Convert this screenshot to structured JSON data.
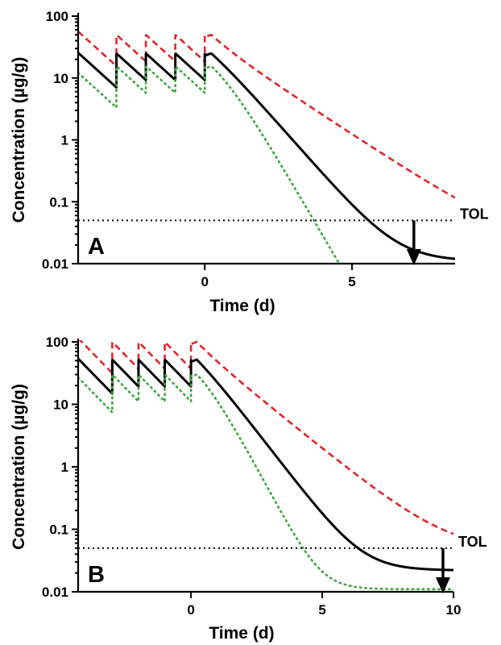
{
  "chart_data": [
    {
      "type": "line",
      "panel_label": "A",
      "xlabel": "Time (d)",
      "ylabel": "Concentration (µg/g)",
      "y_scale": "log",
      "xlim": [
        -4.3,
        8.5
      ],
      "ylim": [
        0.01,
        100
      ],
      "x_ticks": [
        0,
        5
      ],
      "y_ticks": [
        0.01,
        0.1,
        1,
        10,
        100
      ],
      "y_tick_labels": [
        "0.01",
        "0.1",
        "1",
        "10",
        "100"
      ],
      "threshold": {
        "label": "TOL",
        "value": 0.05
      },
      "arrow_at_x": 7.1,
      "dosing": {
        "times": [
          -4,
          -3,
          -2,
          -1,
          0
        ],
        "half_life_d": 0.7
      },
      "series": [
        {
          "style": "dashed",
          "color": "#e0262b",
          "C0": 42,
          "Cpost": 50,
          "decay_tail_k": 0.72,
          "plateau": 0.018
        },
        {
          "style": "solid",
          "color": "#000000",
          "C0": 19,
          "Cpost": 25,
          "decay_tail_k": 1.26,
          "plateau": 0.011
        },
        {
          "style": "dotted",
          "color": "#3aa83a",
          "C0": 9,
          "Cpost": 15.5,
          "decay_tail_k": 1.9,
          "plateau": 0.0001
        }
      ]
    },
    {
      "type": "line",
      "panel_label": "B",
      "xlabel": "Time (d)",
      "ylabel": "Concentration (µg/g)",
      "y_scale": "log",
      "xlim": [
        -4.3,
        10
      ],
      "ylim": [
        0.01,
        100
      ],
      "x_ticks": [
        0,
        5,
        10
      ],
      "y_ticks": [
        0.01,
        0.1,
        1,
        10,
        100
      ],
      "y_tick_labels": [
        "0.01",
        "0.1",
        "1",
        "10",
        "100"
      ],
      "threshold": {
        "label": "TOL",
        "value": 0.05
      },
      "arrow_at_x": 9.6,
      "dosing": {
        "times": [
          -4,
          -3,
          -2,
          -1,
          0
        ],
        "half_life_d": 0.7
      },
      "series": [
        {
          "style": "dashed",
          "color": "#e0262b",
          "C0": 85,
          "Cpost": 100,
          "decay_tail_k": 0.78,
          "plateau": 0.045
        },
        {
          "style": "solid",
          "color": "#000000",
          "C0": 40,
          "Cpost": 52,
          "decay_tail_k": 1.27,
          "plateau": 0.022
        },
        {
          "style": "dotted",
          "color": "#3aa83a",
          "C0": 20,
          "Cpost": 30,
          "decay_tail_k": 1.85,
          "plateau": 0.011
        }
      ]
    }
  ]
}
